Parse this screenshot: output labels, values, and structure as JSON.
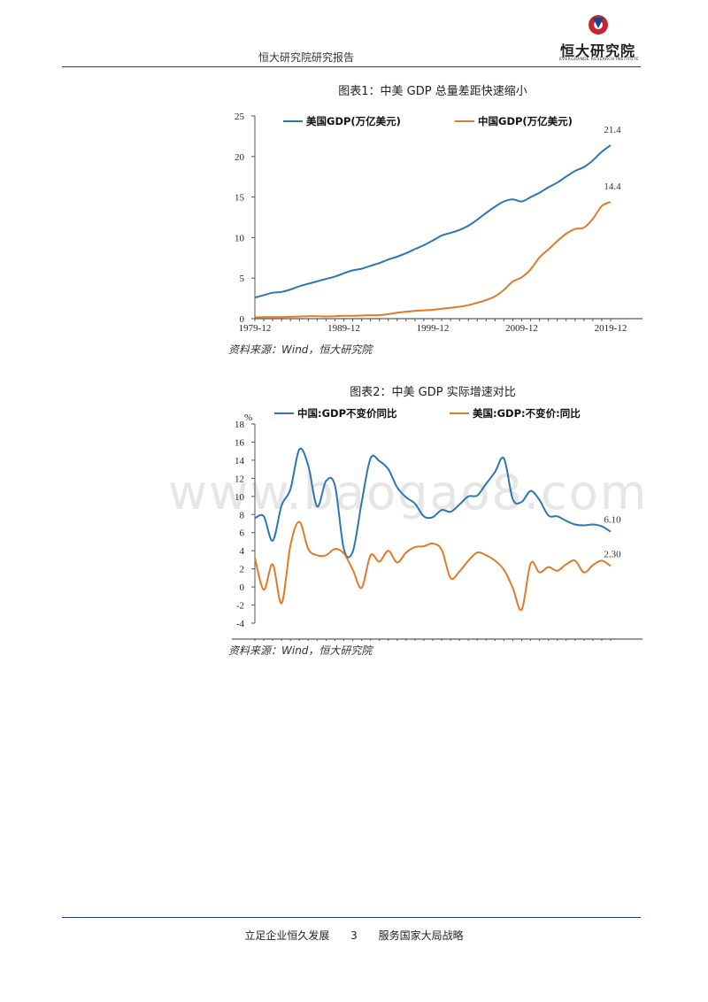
{
  "header": {
    "text": "恒大研究院研究报告",
    "logo_name": "恒大研究院",
    "logo_sub": "EVERGRANDE RESEARCH INSTITUTE"
  },
  "watermark": "www.baogao8.com",
  "charts": [
    {
      "title": "图表1：中美 GDP 总量差距快速缩小",
      "source": "资料来源：Wind，恒大研究院"
    },
    {
      "title": "图表2：中美 GDP 实际增速对比",
      "source": "资料来源：Wind，恒大研究院"
    }
  ],
  "chart_data": [
    {
      "type": "line",
      "title": "图表1：中美 GDP 总量差距快速缩小",
      "xlim": [
        1979,
        2019
      ],
      "ylim": [
        0,
        25
      ],
      "yticks": [
        0,
        5,
        10,
        15,
        20,
        25
      ],
      "xticks": [
        "1979-12",
        "1989-12",
        "1999-12",
        "2009-12",
        "2019-12"
      ],
      "legend_position": "top",
      "x": [
        1979,
        1980,
        1981,
        1982,
        1983,
        1984,
        1985,
        1986,
        1987,
        1988,
        1989,
        1990,
        1991,
        1992,
        1993,
        1994,
        1995,
        1996,
        1997,
        1998,
        1999,
        2000,
        2001,
        2002,
        2003,
        2004,
        2005,
        2006,
        2007,
        2008,
        2009,
        2010,
        2011,
        2012,
        2013,
        2014,
        2015,
        2016,
        2017,
        2018,
        2019
      ],
      "series": [
        {
          "name": "美国GDP(万亿美元)",
          "color": "#2e75b6",
          "end_label": "21.4",
          "values": [
            2.6,
            2.9,
            3.2,
            3.3,
            3.6,
            4.0,
            4.3,
            4.6,
            4.9,
            5.2,
            5.6,
            5.96,
            6.16,
            6.52,
            6.86,
            7.29,
            7.64,
            8.07,
            8.58,
            9.06,
            9.63,
            10.25,
            10.58,
            10.94,
            11.46,
            12.21,
            13.04,
            13.81,
            14.45,
            14.71,
            14.45,
            14.99,
            15.54,
            16.2,
            16.78,
            17.52,
            18.22,
            18.71,
            19.52,
            20.58,
            21.4
          ]
        },
        {
          "name": "中国GDP(万亿美元)",
          "color": "#e07b2c",
          "end_label": "14.4",
          "values": [
            0.18,
            0.19,
            0.2,
            0.2,
            0.23,
            0.26,
            0.31,
            0.3,
            0.27,
            0.31,
            0.35,
            0.36,
            0.38,
            0.43,
            0.44,
            0.56,
            0.73,
            0.86,
            0.96,
            1.03,
            1.09,
            1.21,
            1.34,
            1.47,
            1.66,
            1.96,
            2.29,
            2.75,
            3.55,
            4.59,
            5.1,
            6.09,
            7.55,
            8.53,
            9.57,
            10.48,
            11.06,
            11.23,
            12.31,
            13.89,
            14.4
          ]
        }
      ]
    },
    {
      "type": "line",
      "title": "图表2：中美 GDP 实际增速对比",
      "ylabel": "%",
      "xlim": [
        1979,
        2019
      ],
      "ylim": [
        -4,
        18
      ],
      "yticks": [
        -4,
        -2,
        0,
        2,
        4,
        6,
        8,
        10,
        12,
        14,
        16,
        18
      ],
      "xticks": [
        "1979-12",
        "1989-12",
        "1999-12",
        "2009-12",
        "2019-12"
      ],
      "legend_position": "top",
      "x": [
        1979,
        1980,
        1981,
        1982,
        1983,
        1984,
        1985,
        1986,
        1987,
        1988,
        1989,
        1990,
        1991,
        1992,
        1993,
        1994,
        1995,
        1996,
        1997,
        1998,
        1999,
        2000,
        2001,
        2002,
        2003,
        2004,
        2005,
        2006,
        2007,
        2008,
        2009,
        2010,
        2011,
        2012,
        2013,
        2014,
        2015,
        2016,
        2017,
        2018,
        2019
      ],
      "series": [
        {
          "name": "中国:GDP不变价同比",
          "color": "#2e75b6",
          "end_label": "6.10",
          "values": [
            7.6,
            7.8,
            5.1,
            9.0,
            10.8,
            15.2,
            13.4,
            8.9,
            11.7,
            11.2,
            4.2,
            3.9,
            9.3,
            14.2,
            13.9,
            13.0,
            11.0,
            9.9,
            9.2,
            7.8,
            7.7,
            8.5,
            8.3,
            9.1,
            10.0,
            10.1,
            11.4,
            12.7,
            14.2,
            9.7,
            9.4,
            10.6,
            9.6,
            7.9,
            7.8,
            7.3,
            6.9,
            6.8,
            6.9,
            6.7,
            6.1
          ]
        },
        {
          "name": "美国:GDP:不变价:同比",
          "color": "#e07b2c",
          "end_label": "2.30",
          "values": [
            3.2,
            -0.3,
            2.5,
            -1.8,
            4.6,
            7.2,
            4.2,
            3.5,
            3.5,
            4.2,
            3.7,
            1.9,
            -0.1,
            3.5,
            2.8,
            4.0,
            2.7,
            3.8,
            4.4,
            4.5,
            4.8,
            4.1,
            1.0,
            1.7,
            2.9,
            3.8,
            3.5,
            2.9,
            1.9,
            -0.1,
            -2.5,
            2.6,
            1.6,
            2.2,
            1.8,
            2.5,
            2.9,
            1.6,
            2.4,
            2.9,
            2.3
          ]
        }
      ]
    }
  ],
  "footer": {
    "left": "立足企业恒久发展",
    "page": "3",
    "right": "服务国家大局战略"
  }
}
